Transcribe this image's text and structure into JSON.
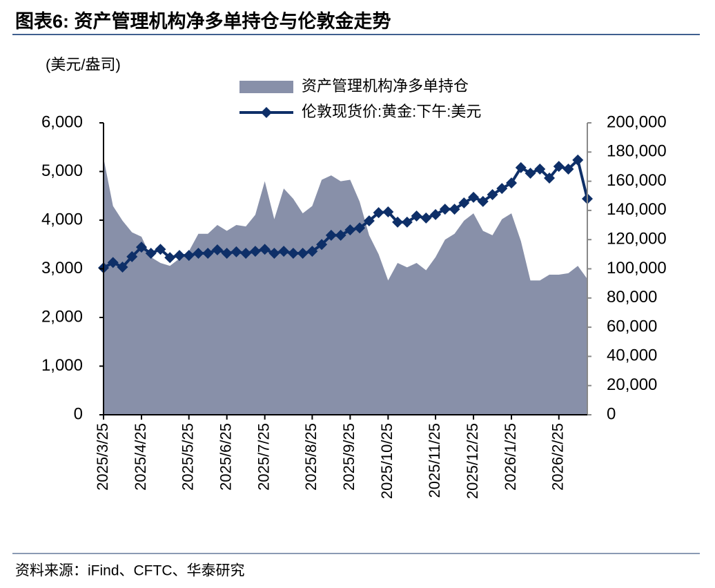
{
  "chart_data": {
    "type": "area_line",
    "title": "图表6:  资产管理机构净多单持仓与伦敦金走势",
    "y_axis_label": "(美元/盎司)",
    "source": "资料来源：iFind、CFTC、华泰研究",
    "categories": [
      "2025/3/25",
      null,
      null,
      null,
      "2025/4/25",
      null,
      null,
      null,
      null,
      "2025/5/25",
      null,
      null,
      null,
      "2025/6/25",
      null,
      null,
      null,
      "2025/7/25",
      null,
      null,
      null,
      null,
      "2025/8/25",
      null,
      null,
      null,
      "2025/9/25",
      null,
      null,
      null,
      "2025/10/25",
      null,
      null,
      null,
      null,
      "2025/11/25",
      null,
      null,
      null,
      "2025/12/25",
      null,
      null,
      null,
      "2026/1/25",
      null,
      null,
      null,
      null,
      "2026/2/25",
      null,
      null,
      null
    ],
    "series": [
      {
        "name": "资产管理机构净多单持仓",
        "kind": "area",
        "axis": "y2",
        "color": "#8890a9",
        "values": [
          176000,
          143000,
          133000,
          125000,
          122000,
          108000,
          104000,
          102000,
          107000,
          112000,
          124000,
          124000,
          130000,
          126000,
          130000,
          129000,
          137000,
          160000,
          134000,
          155000,
          148000,
          138000,
          143000,
          161000,
          164000,
          160000,
          161000,
          146000,
          123000,
          110000,
          92000,
          104000,
          101000,
          104000,
          99000,
          108000,
          120000,
          124000,
          133000,
          138000,
          126000,
          123000,
          134000,
          138000,
          119000,
          92000,
          92000,
          96000,
          96000,
          97000,
          102000,
          93000
        ]
      },
      {
        "name": "伦敦现货价:黄金:下午:美元",
        "kind": "line",
        "color": "#0e2f68",
        "values": [
          3020,
          3130,
          3035,
          3250,
          3445,
          3320,
          3400,
          3230,
          3275,
          3275,
          3320,
          3320,
          3390,
          3320,
          3350,
          3320,
          3360,
          3400,
          3320,
          3360,
          3320,
          3320,
          3360,
          3500,
          3690,
          3690,
          3800,
          3840,
          3985,
          4155,
          4170,
          3960,
          3960,
          4085,
          4045,
          4115,
          4225,
          4225,
          4355,
          4470,
          4385,
          4525,
          4650,
          4765,
          5080,
          4965,
          5050,
          4865,
          5105,
          5050,
          5235,
          4440
        ]
      }
    ],
    "ylim": [
      0,
      6000
    ],
    "yticks": [
      0,
      {
        "value": 1000,
        "label": "1,000"
      },
      {
        "value": 2000,
        "label": "2,000"
      },
      {
        "value": 3000,
        "label": "3,000"
      },
      {
        "value": 4000,
        "label": "4,000"
      },
      {
        "value": 5000,
        "label": "5,000"
      },
      {
        "value": 6000,
        "label": "6,000"
      }
    ],
    "y2lim": [
      0,
      200000
    ],
    "y2ticks": [
      0,
      {
        "value": 20000,
        "label": "20,000"
      },
      {
        "value": 40000,
        "label": "40,000"
      },
      {
        "value": 60000,
        "label": "60,000"
      },
      {
        "value": 80000,
        "label": "80,000"
      },
      {
        "value": 100000,
        "label": "100,000"
      },
      {
        "value": 120000,
        "label": "120,000"
      },
      {
        "value": 140000,
        "label": "140,000"
      },
      {
        "value": 160000,
        "label": "160,000"
      },
      {
        "value": 180000,
        "label": "180,000"
      },
      {
        "value": 200000,
        "label": "200,000"
      }
    ],
    "grid": false,
    "legend": "top"
  }
}
